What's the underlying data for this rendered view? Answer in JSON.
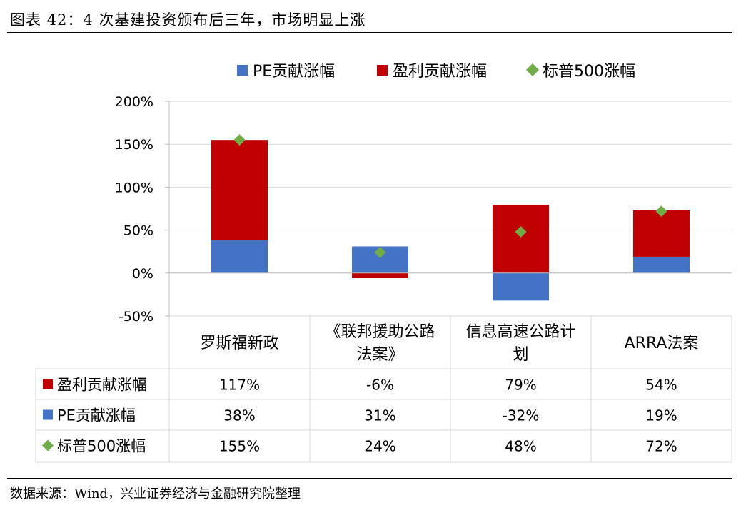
{
  "figure": {
    "title": "图表 42：4 次基建投资颁布后三年，市场明显上涨",
    "source": "数据来源：Wind，兴业证券经济与金融研究院整理"
  },
  "colors": {
    "pe": "#4472C4",
    "profit": "#C00000",
    "sp500": "#70AD47",
    "grid": "#D9D9D9",
    "axis": "#BFBFBF"
  },
  "chart_data": {
    "type": "bar",
    "stacked": true,
    "categories": [
      "罗斯福新政",
      "《联邦援助公路法案》",
      "信息高速公路计划",
      "ARRA法案"
    ],
    "category_lines": [
      [
        "罗斯福新政"
      ],
      [
        "《联邦援助公路",
        "法案》"
      ],
      [
        "信息高速公路计",
        "划"
      ],
      [
        "ARRA法案"
      ]
    ],
    "series": [
      {
        "name": "盈利贡献涨幅",
        "kind": "bar",
        "values": [
          117,
          -6,
          79,
          54
        ]
      },
      {
        "name": "PE贡献涨幅",
        "kind": "bar",
        "values": [
          38,
          31,
          -32,
          19
        ]
      },
      {
        "name": "标普500涨幅",
        "kind": "marker",
        "values": [
          155,
          24,
          48,
          72
        ]
      }
    ],
    "legend_order": [
      "PE贡献涨幅",
      "盈利贡献涨幅",
      "标普500涨幅"
    ],
    "legend_position": "top",
    "ylim": [
      -50,
      200
    ],
    "yticks": [
      "200%",
      "150%",
      "100%",
      "50%",
      "0%",
      "-50%"
    ],
    "ytick_values": [
      200,
      150,
      100,
      50,
      0,
      -50
    ],
    "grid": true,
    "data_table": {
      "rows": [
        {
          "label": "盈利贡献涨幅",
          "cells": [
            "117%",
            "-6%",
            "79%",
            "54%"
          ]
        },
        {
          "label": "PE贡献涨幅",
          "cells": [
            "38%",
            "31%",
            "-32%",
            "19%"
          ]
        },
        {
          "label": "标普500涨幅",
          "cells": [
            "155%",
            "24%",
            "48%",
            "72%"
          ]
        }
      ]
    }
  }
}
